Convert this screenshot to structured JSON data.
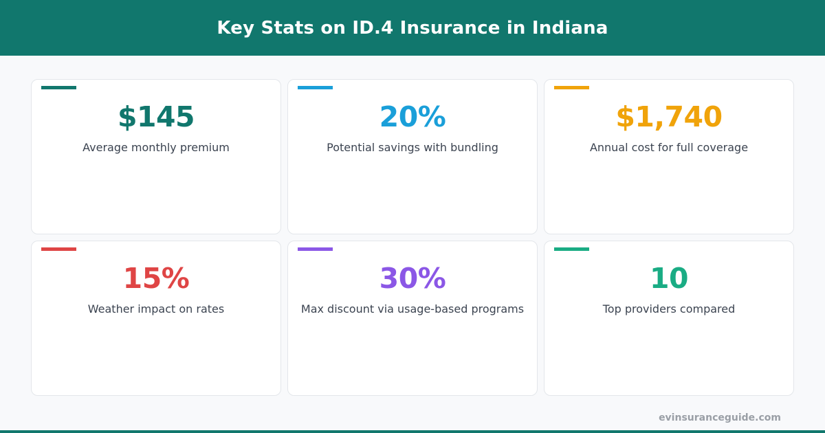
{
  "header": {
    "title": "Key Stats on ID.4 Insurance in Indiana"
  },
  "stats": [
    {
      "value": "$145",
      "label": "Average monthly premium",
      "color": "#11776d"
    },
    {
      "value": "20%",
      "label": "Potential savings with bundling",
      "color": "#1a9fd9"
    },
    {
      "value": "$1,740",
      "label": "Annual cost for full coverage",
      "color": "#f0a30a"
    },
    {
      "value": "15%",
      "label": "Weather impact on rates",
      "color": "#df4545"
    },
    {
      "value": "30%",
      "label": "Max discount via usage-based programs",
      "color": "#8b57e6"
    },
    {
      "value": "10",
      "label": "Top providers compared",
      "color": "#1aac84"
    }
  ],
  "footer": {
    "site": "evinsuranceguide.com"
  }
}
